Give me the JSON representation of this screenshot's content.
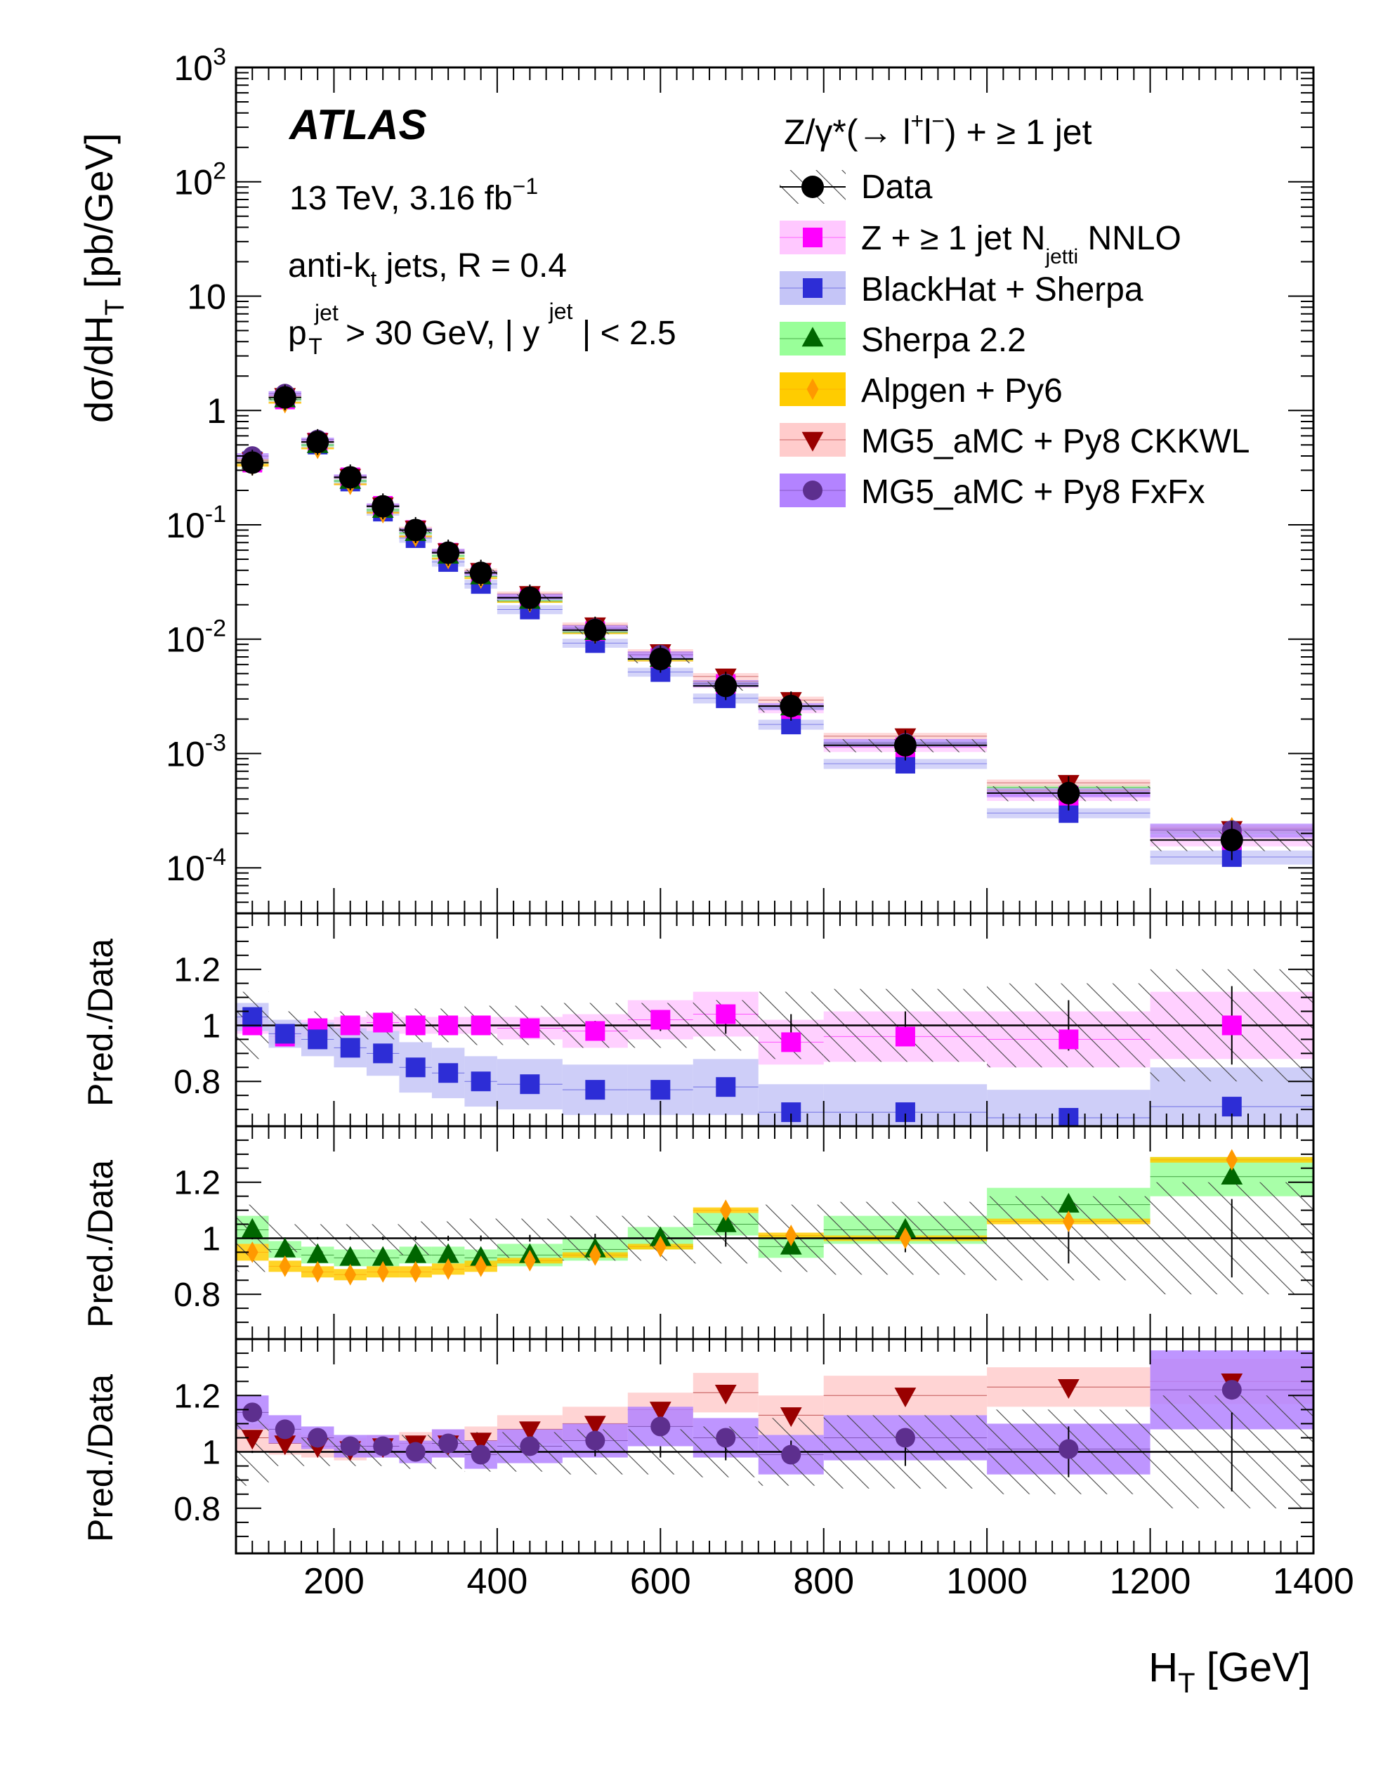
{
  "chart_data": {
    "type": "scatter",
    "experiment": "ATLAS",
    "energy_label": "13 TeV, 3.16 fb",
    "energy_lumi_sup": "−1",
    "jet_algo_label": "anti-k",
    "jet_algo_sub": "t",
    "jet_algo_rest": " jets, R = 0.4",
    "cut_pt_label": "p",
    "cut_pt_sup": "jet",
    "cut_pt_sub": "T",
    "cut_rest": " > 30 GeV, | y",
    "cut_y_sup": "jet",
    "cut_end": " | < 2.5",
    "process_prefix": "Z/γ*(→ l",
    "process_sup1": "+",
    "process_mid": "l",
    "process_sup2": "−",
    "process_suffix": ") + ≥ 1 jet",
    "ylabel": "dσ/dH",
    "ylabel_sub": "T",
    "ylabel_unit": " [pb/GeV]",
    "ratio_ylabel": "Pred./Data",
    "xlabel": "H",
    "xlabel_sub": "T",
    "xlabel_unit": " [GeV]",
    "xlim": [
      80,
      1400
    ],
    "ylim": [
      4e-05,
      1000
    ],
    "ratio_ylim": [
      0.64,
      1.4
    ],
    "x_ticks": [
      200,
      400,
      600,
      800,
      1000,
      1200,
      1400
    ],
    "x_tick_labels": [
      "200",
      "400",
      "600",
      "800",
      "1000",
      "1200",
      "1400"
    ],
    "y_ticks": [
      {
        "base": "10",
        "exp": "3",
        "value": 1000
      },
      {
        "base": "10",
        "exp": "2",
        "value": 100
      },
      {
        "base": "10",
        "exp": "",
        "value": 10
      },
      {
        "base": "1",
        "exp": "",
        "value": 1
      },
      {
        "base": "10",
        "exp": "-1",
        "value": 0.1
      },
      {
        "base": "10",
        "exp": "-2",
        "value": 0.01
      },
      {
        "base": "10",
        "exp": "-3",
        "value": 0.001
      },
      {
        "base": "10",
        "exp": "-4",
        "value": 0.0001
      }
    ],
    "ratio_y_ticks": [
      "0.8",
      "1",
      "1.2"
    ],
    "bins": {
      "lo": [
        80,
        120,
        160,
        200,
        240,
        280,
        320,
        360,
        400,
        480,
        560,
        640,
        720,
        800,
        1000,
        1200
      ],
      "hi": [
        120,
        160,
        200,
        240,
        280,
        320,
        360,
        400,
        480,
        560,
        640,
        720,
        800,
        1000,
        1200,
        1400
      ],
      "center": [
        100,
        140,
        180,
        220,
        260,
        300,
        340,
        380,
        440,
        520,
        600,
        680,
        760,
        900,
        1100,
        1300
      ]
    },
    "data_values": [
      0.35,
      1.3,
      0.53,
      0.26,
      0.145,
      0.09,
      0.057,
      0.038,
      0.023,
      0.012,
      0.0067,
      0.0039,
      0.0026,
      0.00118,
      0.00045,
      0.000175
    ],
    "data_stat_err": [
      0.004,
      0.003,
      0.004,
      0.005,
      0.006,
      0.007,
      0.009,
      0.01,
      0.012,
      0.016,
      0.02,
      0.03,
      0.04,
      0.05,
      0.09,
      0.14
    ],
    "data_syst_band": [
      0.12,
      0.05,
      0.05,
      0.05,
      0.05,
      0.06,
      0.06,
      0.07,
      0.07,
      0.08,
      0.08,
      0.09,
      0.12,
      0.13,
      0.15,
      0.2
    ],
    "series": [
      {
        "name": "Z + ≥ 1 jet N",
        "name_sub": "jetti",
        "name_suffix": " NNLO",
        "key": "nnlo",
        "color": "#ff00ff",
        "band_color": "#ffc8ff",
        "marker": "square",
        "panel": 1,
        "ratio": [
          1.0,
          0.96,
          0.99,
          1.0,
          1.01,
          1.0,
          1.0,
          1.0,
          0.99,
          0.98,
          1.02,
          1.04,
          0.94,
          0.96,
          0.95,
          1.0
        ],
        "band": [
          0.03,
          0.03,
          0.03,
          0.03,
          0.03,
          0.03,
          0.03,
          0.03,
          0.04,
          0.06,
          0.07,
          0.08,
          0.08,
          0.09,
          0.1,
          0.12
        ]
      },
      {
        "name": "BlackHat+Sherpa",
        "key": "blackhat",
        "color": "#2d2dd6",
        "band_color": "#c5c5f7",
        "marker": "square",
        "panel": 1,
        "ratio": [
          1.03,
          0.97,
          0.95,
          0.92,
          0.9,
          0.85,
          0.83,
          0.8,
          0.79,
          0.77,
          0.77,
          0.78,
          0.69,
          0.69,
          0.67,
          0.71
        ],
        "band": [
          0.05,
          0.05,
          0.06,
          0.07,
          0.08,
          0.09,
          0.09,
          0.09,
          0.09,
          0.09,
          0.09,
          0.1,
          0.1,
          0.1,
          0.1,
          0.14
        ]
      },
      {
        "name": "Sherpa 2.2",
        "key": "sherpa",
        "color": "#006600",
        "band_color": "#99ff99",
        "marker": "triangle",
        "panel": 2,
        "ratio": [
          1.03,
          0.96,
          0.94,
          0.93,
          0.93,
          0.94,
          0.94,
          0.93,
          0.94,
          0.96,
          1.0,
          1.05,
          0.97,
          1.03,
          1.12,
          1.22
        ],
        "band": [
          0.05,
          0.03,
          0.03,
          0.03,
          0.03,
          0.03,
          0.03,
          0.03,
          0.04,
          0.04,
          0.04,
          0.04,
          0.04,
          0.05,
          0.06,
          0.07
        ]
      },
      {
        "name": "Alpgen+Py6",
        "key": "alpgen",
        "color": "#ff9900",
        "band_color": "#ffcc00",
        "marker": "diamond",
        "panel": 2,
        "ratio": [
          0.95,
          0.9,
          0.88,
          0.87,
          0.88,
          0.88,
          0.89,
          0.9,
          0.92,
          0.94,
          0.97,
          1.1,
          1.01,
          1.0,
          1.06,
          1.28
        ],
        "band": [
          0.03,
          0.02,
          0.02,
          0.02,
          0.02,
          0.02,
          0.02,
          0.02,
          0.01,
          0.01,
          0.01,
          0.01,
          0.01,
          0.01,
          0.01,
          0.01
        ]
      },
      {
        "name": "MG5_aMC+Py8 CKKWL",
        "key": "ckkwl",
        "color": "#990000",
        "band_color": "#ffcccc",
        "marker": "invtriangle",
        "panel": 3,
        "ratio": [
          1.05,
          1.03,
          1.02,
          1.01,
          1.02,
          1.03,
          1.03,
          1.04,
          1.08,
          1.1,
          1.15,
          1.21,
          1.13,
          1.2,
          1.23,
          1.25
        ],
        "band": [
          0.05,
          0.04,
          0.04,
          0.04,
          0.04,
          0.04,
          0.05,
          0.05,
          0.05,
          0.06,
          0.06,
          0.07,
          0.07,
          0.07,
          0.07,
          0.08
        ]
      },
      {
        "name": "MG5_aMC+Py8 FxFx",
        "key": "fxfx",
        "color": "#5d2f8e",
        "band_color": "#b383ff",
        "marker": "circle",
        "panel": 3,
        "ratio": [
          1.14,
          1.08,
          1.05,
          1.02,
          1.02,
          1.0,
          1.03,
          0.99,
          1.02,
          1.04,
          1.09,
          1.05,
          0.99,
          1.05,
          1.01,
          1.22
        ],
        "band": [
          0.06,
          0.05,
          0.04,
          0.04,
          0.04,
          0.04,
          0.05,
          0.05,
          0.06,
          0.06,
          0.07,
          0.07,
          0.07,
          0.08,
          0.09,
          0.14
        ]
      }
    ],
    "legend": [
      {
        "key": "data",
        "label": "Data"
      },
      {
        "key": "nnlo",
        "label": "Z + ≥ 1 jet N",
        "sub": "jetti",
        "suffix": " NNLO"
      },
      {
        "key": "blackhat",
        "label": "BlackHat + Sherpa"
      },
      {
        "key": "sherpa",
        "label": "Sherpa 2.2"
      },
      {
        "key": "alpgen",
        "label": "Alpgen + Py6"
      },
      {
        "key": "ckkwl",
        "label": "MG5_aMC + Py8 CKKWL"
      },
      {
        "key": "fxfx",
        "label": "MG5_aMC + Py8 FxFx"
      }
    ],
    "legend_position": "top-right"
  }
}
